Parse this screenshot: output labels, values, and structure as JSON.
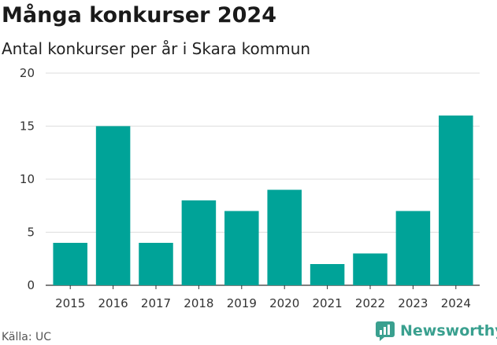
{
  "chart_data": {
    "type": "bar",
    "title": "Många konkurser 2024",
    "subtitle": "Antal konkurser per år i Skara kommun",
    "categories": [
      "2015",
      "2016",
      "2017",
      "2018",
      "2019",
      "2020",
      "2021",
      "2022",
      "2023",
      "2024"
    ],
    "values": [
      4,
      15,
      4,
      8,
      7,
      9,
      2,
      3,
      7,
      16
    ],
    "xlabel": "",
    "ylabel": "",
    "ylim": [
      0,
      20
    ],
    "yticks": [
      "0",
      "5",
      "10",
      "15",
      "20"
    ],
    "grid": true,
    "legend": "none",
    "bar_color": "#00a398"
  },
  "source": "Källa: UC",
  "brand": {
    "name": "Newsworthy",
    "logo_icon": "newsworthy-chart-logo-icon",
    "color": "#3aa08f"
  }
}
